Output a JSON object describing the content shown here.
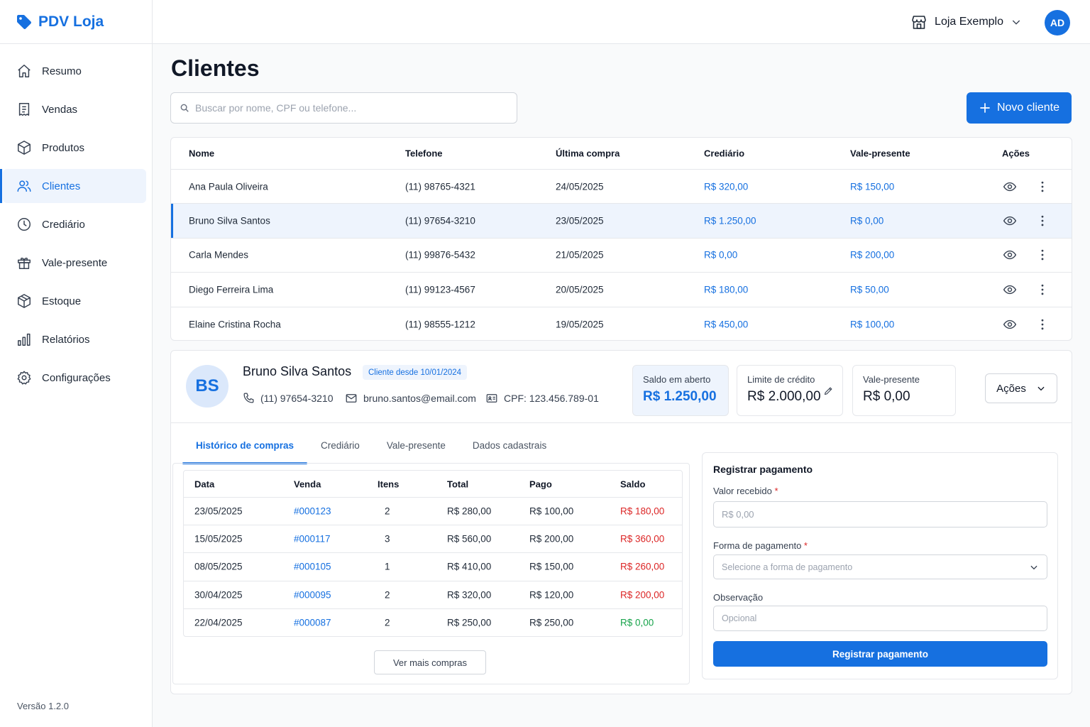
{
  "app": {
    "name": "PDV Loja",
    "version": "Versão 1.2.0",
    "accent": "#1670e0"
  },
  "sidebar": {
    "items": [
      {
        "label": "Resumo",
        "icon": "home-icon"
      },
      {
        "label": "Vendas",
        "icon": "receipt-icon"
      },
      {
        "label": "Produtos",
        "icon": "box-icon"
      },
      {
        "label": "Clientes",
        "icon": "users-icon",
        "active": true
      },
      {
        "label": "Crediário",
        "icon": "clock-icon"
      },
      {
        "label": "Vale-presente",
        "icon": "gift-icon"
      },
      {
        "label": "Estoque",
        "icon": "package-icon"
      },
      {
        "label": "Relatórios",
        "icon": "bar-chart-icon"
      },
      {
        "label": "Configurações",
        "icon": "gear-icon"
      }
    ]
  },
  "header": {
    "store": "Loja Exemplo",
    "user_initials": "AD"
  },
  "page": {
    "title": "Clientes",
    "search_placeholder": "Buscar por nome, CPF ou telefone...",
    "new_button": "Novo cliente"
  },
  "clients_table": {
    "columns": [
      "Nome",
      "Telefone",
      "Última compra",
      "Crediário",
      "Vale-presente",
      "Ações"
    ],
    "rows": [
      {
        "nome": "Ana Paula Oliveira",
        "telefone": "(11) 98765-4321",
        "ultima": "24/05/2025",
        "crediario": "R$ 320,00",
        "vale": "R$ 150,00"
      },
      {
        "nome": "Bruno Silva Santos",
        "telefone": "(11) 97654-3210",
        "ultima": "23/05/2025",
        "crediario": "R$ 1.250,00",
        "vale": "R$ 0,00"
      },
      {
        "nome": "Carla Mendes",
        "telefone": "(11) 99876-5432",
        "ultima": "21/05/2025",
        "crediario": "R$ 0,00",
        "vale": "R$ 200,00"
      },
      {
        "nome": "Diego Ferreira Lima",
        "telefone": "(11) 99123-4567",
        "ultima": "20/05/2025",
        "crediario": "R$ 180,00",
        "vale": "R$ 50,00"
      },
      {
        "nome": "Elaine Cristina Rocha",
        "telefone": "(11) 98555-1212",
        "ultima": "19/05/2025",
        "crediario": "R$ 450,00",
        "vale": "R$ 100,00"
      }
    ]
  },
  "detail": {
    "initials": "BS",
    "name": "Bruno Silva Santos",
    "since": "Cliente desde 10/01/2024",
    "phone": "(11) 97654-3210",
    "email": "bruno.santos@email.com",
    "cpf": "CPF: 123.456.789-01",
    "stats": {
      "saldo_label": "Saldo em aberto",
      "saldo_value": "R$ 1.250,00",
      "limite_label": "Limite de crédito",
      "limite_value": "R$ 2.000,00",
      "vale_label": "Vale-presente",
      "vale_value": "R$ 0,00"
    },
    "actions_label": "Ações",
    "tabs": [
      "Histórico de compras",
      "Crediário",
      "Vale-presente",
      "Dados cadastrais"
    ],
    "history": {
      "columns": [
        "Data",
        "Venda",
        "Itens",
        "Total",
        "Pago",
        "Saldo"
      ],
      "rows": [
        {
          "data": "23/05/2025",
          "venda": "#000123",
          "itens": "2",
          "total": "R$ 280,00",
          "pago": "R$ 100,00",
          "saldo": "R$ 180,00"
        },
        {
          "data": "15/05/2025",
          "venda": "#000117",
          "itens": "3",
          "total": "R$ 560,00",
          "pago": "R$ 200,00",
          "saldo": "R$ 360,00"
        },
        {
          "data": "08/05/2025",
          "venda": "#000105",
          "itens": "1",
          "total": "R$ 410,00",
          "pago": "R$ 150,00",
          "saldo": "R$ 260,00"
        },
        {
          "data": "30/04/2025",
          "venda": "#000095",
          "itens": "2",
          "total": "R$ 320,00",
          "pago": "R$ 120,00",
          "saldo": "R$ 200,00"
        },
        {
          "data": "22/04/2025",
          "venda": "#000087",
          "itens": "2",
          "total": "R$ 250,00",
          "pago": "R$ 250,00",
          "saldo": "R$ 0,00"
        }
      ],
      "more_button": "Ver mais compras"
    },
    "payment": {
      "title": "Registrar pagamento",
      "valor_label": "Valor recebido",
      "valor_placeholder": "R$ 0,00",
      "forma_label": "Forma de pagamento",
      "forma_placeholder": "Selecione a forma de pagamento",
      "obs_label": "Observação",
      "obs_placeholder": "Opcional",
      "required_mark": "*",
      "submit": "Registrar pagamento"
    }
  }
}
